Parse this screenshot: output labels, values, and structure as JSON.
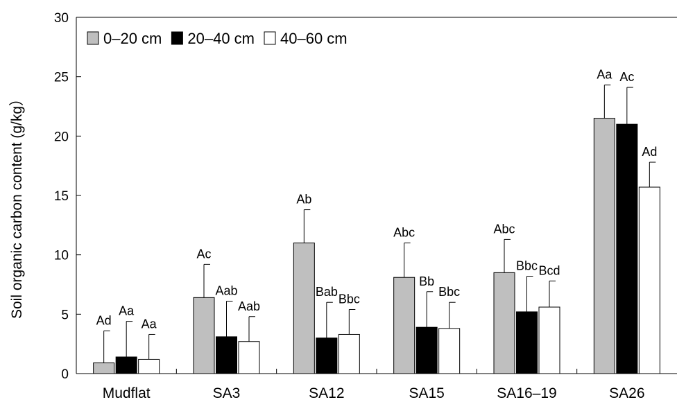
{
  "chart_data": {
    "type": "bar",
    "categories": [
      "Mudflat",
      "SA3",
      "SA12",
      "SA15",
      "SA16–19",
      "SA26"
    ],
    "series": [
      {
        "name": "0–20 cm",
        "color": "#bfbfbf",
        "values": [
          0.9,
          6.4,
          11.0,
          8.1,
          8.5,
          21.5
        ],
        "errors": [
          2.7,
          2.8,
          2.8,
          2.9,
          2.8,
          2.8
        ],
        "labels": [
          "Ad",
          "Ac",
          "Ab",
          "Abc",
          "Abc",
          "Aa"
        ]
      },
      {
        "name": "20–40 cm",
        "color": "#000000",
        "values": [
          1.4,
          3.1,
          3.0,
          3.9,
          5.2,
          21.0
        ],
        "errors": [
          3.0,
          3.0,
          3.0,
          3.0,
          3.0,
          3.1
        ],
        "labels": [
          "Aa",
          "Aab",
          "Bab",
          "Bb",
          "Bbc",
          "Ac"
        ]
      },
      {
        "name": "40–60 cm",
        "color": "#ffffff",
        "values": [
          1.2,
          2.7,
          3.3,
          3.8,
          5.6,
          15.7
        ],
        "errors": [
          2.1,
          2.1,
          2.1,
          2.2,
          2.2,
          2.1
        ],
        "labels": [
          "Aa",
          "Aab",
          "Bbc",
          "Bbc",
          "Bcd",
          "Ad"
        ]
      }
    ],
    "ylabel": "Soil organic carbon content (g/kg）",
    "ylim": [
      0,
      30
    ],
    "yticks": [
      0,
      5,
      10,
      15,
      20,
      25,
      30
    ],
    "grid": false,
    "legend_position": "top-left"
  }
}
